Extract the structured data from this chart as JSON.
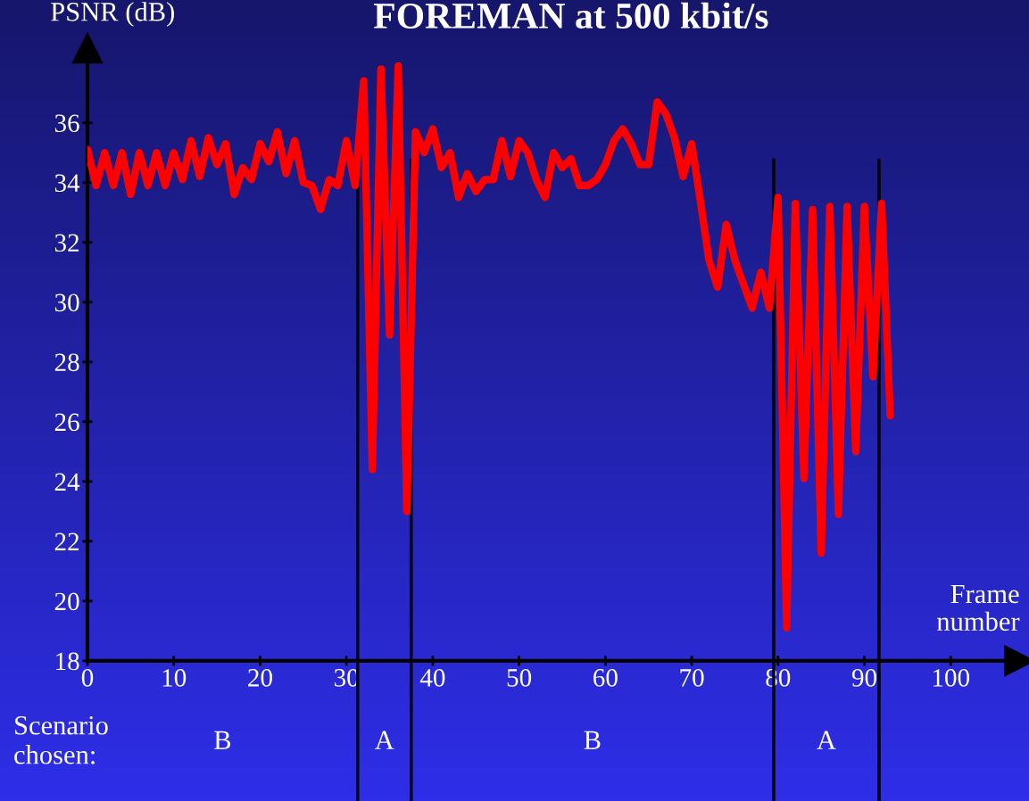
{
  "chart_data": {
    "type": "line",
    "title": "FOREMAN at 500 kbit/s",
    "xlabel": "Frame number",
    "ylabel": "PSNR (dB)",
    "x": [
      0,
      1,
      2,
      3,
      4,
      5,
      6,
      7,
      8,
      9,
      10,
      11,
      12,
      13,
      14,
      15,
      16,
      17,
      18,
      19,
      20,
      21,
      22,
      23,
      24,
      25,
      26,
      27,
      28,
      29,
      30,
      31,
      32,
      33,
      34,
      35,
      36,
      37,
      38,
      39,
      40,
      41,
      42,
      43,
      44,
      45,
      46,
      47,
      48,
      49,
      50,
      51,
      52,
      53,
      54,
      55,
      56,
      57,
      58,
      59,
      60,
      61,
      62,
      63,
      64,
      65,
      66,
      67,
      68,
      69,
      70,
      71,
      72,
      73,
      74,
      75,
      76,
      77,
      78,
      79,
      80,
      81,
      82,
      83,
      84,
      85,
      86,
      87,
      88,
      89,
      90,
      91,
      92,
      93
    ],
    "series": [
      {
        "color": "#ff0000",
        "values": [
          35.1,
          33.9,
          35.0,
          33.9,
          35.0,
          33.6,
          35.0,
          33.9,
          35.0,
          33.9,
          35.0,
          34.1,
          35.4,
          34.2,
          35.5,
          34.6,
          35.3,
          33.6,
          34.5,
          34.1,
          35.3,
          34.7,
          35.7,
          34.3,
          35.4,
          34.0,
          33.9,
          33.1,
          34.1,
          33.9,
          35.4,
          33.9,
          37.4,
          24.4,
          37.8,
          28.9,
          37.9,
          23.0,
          35.7,
          35.0,
          35.8,
          34.5,
          35.0,
          33.5,
          34.3,
          33.7,
          34.1,
          34.1,
          35.4,
          34.2,
          35.4,
          35.0,
          34.1,
          33.5,
          35.0,
          34.5,
          34.8,
          33.9,
          33.9,
          34.1,
          34.6,
          35.4,
          35.8,
          35.3,
          34.6,
          34.6,
          36.7,
          36.3,
          35.5,
          34.2,
          35.3,
          33.4,
          31.4,
          30.5,
          32.6,
          31.4,
          30.6,
          29.8,
          31.0,
          29.8,
          33.5,
          19.1,
          33.3,
          24.1,
          33.1,
          21.6,
          33.2,
          22.9,
          33.2,
          25.0,
          33.2,
          27.5,
          33.3,
          26.2
        ]
      }
    ],
    "xlim": [
      0,
      108
    ],
    "ylim": [
      18,
      38.5
    ],
    "xticks": [
      0,
      10,
      20,
      30,
      40,
      50,
      60,
      70,
      80,
      90,
      100
    ],
    "yticks": [
      18,
      20,
      22,
      24,
      26,
      28,
      30,
      32,
      34,
      36
    ],
    "ref_lines": [
      {
        "axis": "x",
        "value": 31.3,
        "color": "#000000"
      },
      {
        "axis": "x",
        "value": 37.5,
        "color": "#000000"
      },
      {
        "axis": "x",
        "value": 79.5,
        "color": "#000000"
      },
      {
        "axis": "x",
        "value": 91.7,
        "color": "#000000"
      }
    ],
    "annotations": [
      "Scenario\nchosen:",
      "B",
      "A",
      "B",
      "A"
    ],
    "grid": false,
    "legend": false,
    "marker": "none",
    "line_style": "solid"
  }
}
